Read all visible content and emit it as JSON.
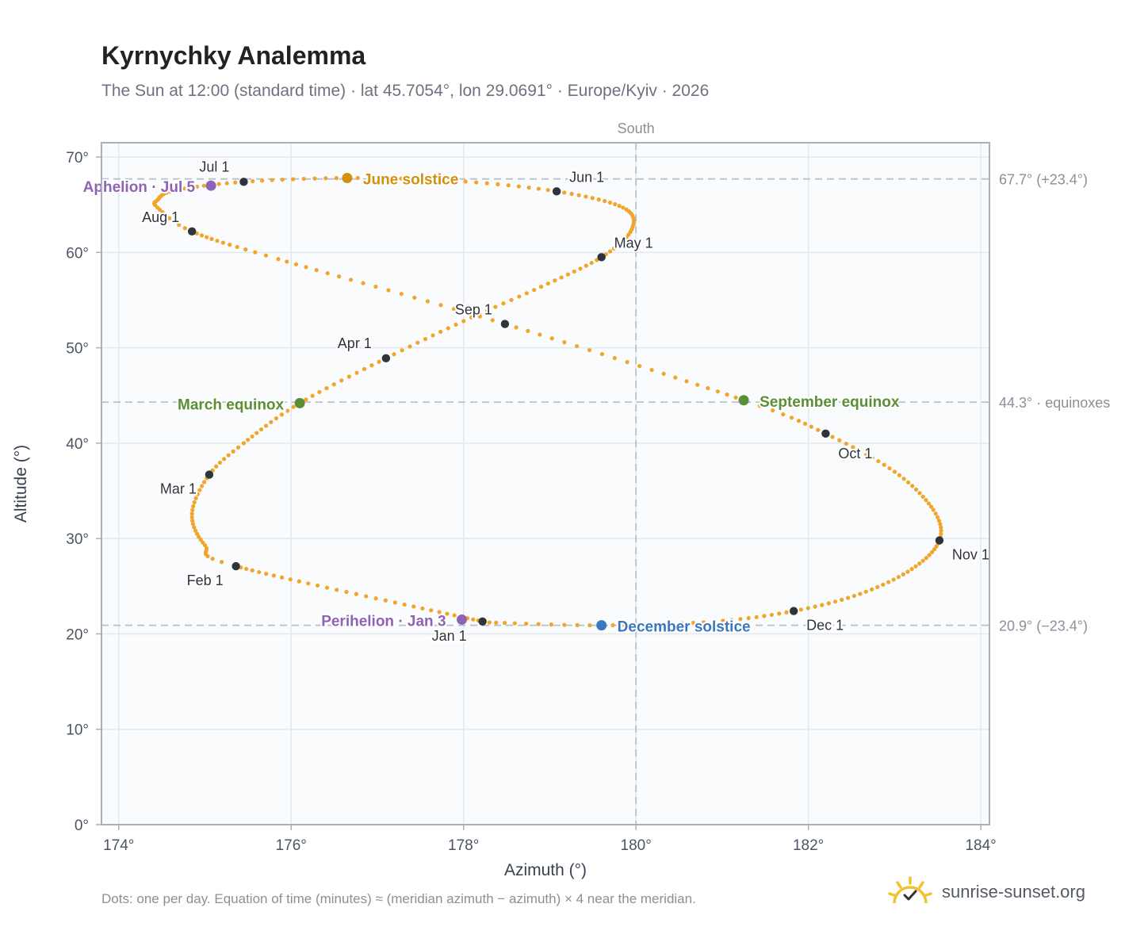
{
  "header": {
    "title": "Kyrnychky Analemma",
    "subtitle": "The Sun at 12:00 (standard time) · lat 45.7054°, lon 29.0691° · Europe/Kyiv · 2026"
  },
  "footer": {
    "note": "Dots: one per day. Equation of time (minutes) ≈ (meridian azimuth − azimuth) × 4 near the meridian.",
    "brand": "sunrise-sunset.org"
  },
  "colors": {
    "curve": "#f2a52b",
    "month_marker": "#2f343b",
    "june_solstice": "#d4900c",
    "december_solstice": "#3a77c2",
    "equinox": "#5a8f35",
    "apsis": "#8e62b4",
    "reference_line": "#b7c2cc",
    "plot_background": "#f9fbfd"
  },
  "chart_data": {
    "type": "scatter",
    "xlabel": "Azimuth (°)",
    "ylabel": "Altitude (°)",
    "xlim": [
      173.8,
      184.1
    ],
    "ylim": [
      0,
      71.5
    ],
    "x_ticks": [
      174,
      176,
      178,
      180,
      182,
      184
    ],
    "y_ticks": [
      0,
      10,
      20,
      30,
      40,
      50,
      60,
      70
    ],
    "x_tick_labels": [
      "174°",
      "176°",
      "178°",
      "180°",
      "182°",
      "184°"
    ],
    "y_tick_labels": [
      "0°",
      "10°",
      "20°",
      "30°",
      "40°",
      "50°",
      "60°",
      "70°"
    ],
    "grid": true,
    "south": {
      "azimuth": 180,
      "label": "South"
    },
    "reference_lines": [
      {
        "altitude": 67.7,
        "label": "67.7° (+23.4°)"
      },
      {
        "altitude": 44.3,
        "label": "44.3° · equinoxes"
      },
      {
        "altitude": 20.9,
        "label": "20.9° (−23.4°)"
      }
    ],
    "path": [
      {
        "day": 1,
        "az": 178.22,
        "alt": 21.3
      },
      {
        "day": 32,
        "az": 175.36,
        "alt": 27.1
      },
      {
        "day": 40,
        "az": 175.0,
        "alt": 29.3
      },
      {
        "day": 50,
        "az": 174.85,
        "alt": 32.6
      },
      {
        "day": 60,
        "az": 175.05,
        "alt": 36.7
      },
      {
        "day": 68,
        "az": 175.45,
        "alt": 40.0
      },
      {
        "day": 79,
        "az": 176.1,
        "alt": 44.2
      },
      {
        "day": 91,
        "az": 177.1,
        "alt": 48.9
      },
      {
        "day": 101,
        "az": 178.0,
        "alt": 52.8
      },
      {
        "day": 111,
        "az": 178.9,
        "alt": 56.4
      },
      {
        "day": 121,
        "az": 179.6,
        "alt": 59.5
      },
      {
        "day": 131,
        "az": 179.95,
        "alt": 62.4
      },
      {
        "day": 141,
        "az": 179.85,
        "alt": 64.7
      },
      {
        "day": 152,
        "az": 179.08,
        "alt": 66.4
      },
      {
        "day": 162,
        "az": 177.9,
        "alt": 67.5
      },
      {
        "day": 172,
        "az": 176.65,
        "alt": 67.8
      },
      {
        "day": 182,
        "az": 175.45,
        "alt": 67.4
      },
      {
        "day": 192,
        "az": 174.65,
        "alt": 66.5
      },
      {
        "day": 200,
        "az": 174.45,
        "alt": 65.5
      },
      {
        "day": 205,
        "az": 174.45,
        "alt": 64.7
      },
      {
        "day": 213,
        "az": 174.85,
        "alt": 62.2
      },
      {
        "day": 225,
        "az": 175.85,
        "alt": 59.3
      },
      {
        "day": 244,
        "az": 178.48,
        "alt": 52.5
      },
      {
        "day": 265,
        "az": 181.25,
        "alt": 44.5
      },
      {
        "day": 274,
        "az": 182.2,
        "alt": 41.0
      },
      {
        "day": 285,
        "az": 183.0,
        "alt": 37.0
      },
      {
        "day": 296,
        "az": 183.45,
        "alt": 33.0
      },
      {
        "day": 305,
        "az": 183.52,
        "alt": 29.8
      },
      {
        "day": 315,
        "az": 183.2,
        "alt": 26.8
      },
      {
        "day": 325,
        "az": 182.6,
        "alt": 24.2
      },
      {
        "day": 335,
        "az": 181.83,
        "alt": 22.4
      },
      {
        "day": 345,
        "az": 180.9,
        "alt": 21.3
      },
      {
        "day": 355,
        "az": 179.6,
        "alt": 20.9
      },
      {
        "day": 365,
        "az": 178.3,
        "alt": 21.2
      }
    ],
    "month_markers": [
      {
        "label": "Jan 1",
        "az": 178.22,
        "alt": 21.3,
        "anchor": "middle",
        "dx": -42,
        "dy": 24
      },
      {
        "label": "Feb 1",
        "az": 175.36,
        "alt": 27.1,
        "anchor": "end",
        "dx": -16,
        "dy": 24
      },
      {
        "label": "Mar 1",
        "az": 175.05,
        "alt": 36.7,
        "anchor": "end",
        "dx": -16,
        "dy": 24
      },
      {
        "label": "Apr 1",
        "az": 177.1,
        "alt": 48.9,
        "anchor": "end",
        "dx": -18,
        "dy": -13
      },
      {
        "label": "May 1",
        "az": 179.6,
        "alt": 59.5,
        "anchor": "start",
        "dx": 16,
        "dy": -12
      },
      {
        "label": "Jun 1",
        "az": 179.08,
        "alt": 66.4,
        "anchor": "start",
        "dx": 16,
        "dy": -12
      },
      {
        "label": "Jul 1",
        "az": 175.45,
        "alt": 67.4,
        "anchor": "end",
        "dx": -18,
        "dy": -13
      },
      {
        "label": "Aug 1",
        "az": 174.85,
        "alt": 62.2,
        "anchor": "end",
        "dx": -16,
        "dy": -12
      },
      {
        "label": "Sep 1",
        "az": 178.48,
        "alt": 52.5,
        "anchor": "end",
        "dx": -16,
        "dy": -12
      },
      {
        "label": "Oct 1",
        "az": 182.2,
        "alt": 41.0,
        "anchor": "start",
        "dx": 16,
        "dy": 31
      },
      {
        "label": "Nov 1",
        "az": 183.52,
        "alt": 29.8,
        "anchor": "start",
        "dx": 16,
        "dy": 24
      },
      {
        "label": "Dec 1",
        "az": 181.83,
        "alt": 22.4,
        "anchor": "start",
        "dx": 16,
        "dy": 24
      }
    ],
    "events": [
      {
        "label": "June solstice",
        "az": 176.65,
        "alt": 67.8,
        "color_key": "june_solstice",
        "anchor": "start",
        "dx": 20,
        "dy": 8
      },
      {
        "label": "December solstice",
        "az": 179.6,
        "alt": 20.9,
        "color_key": "december_solstice",
        "anchor": "start",
        "dx": 20,
        "dy": 8
      },
      {
        "label": "March equinox",
        "az": 176.1,
        "alt": 44.2,
        "color_key": "equinox",
        "anchor": "end",
        "dx": -20,
        "dy": 8
      },
      {
        "label": "September equinox",
        "az": 181.25,
        "alt": 44.5,
        "color_key": "equinox",
        "anchor": "start",
        "dx": 20,
        "dy": 8
      },
      {
        "label": "Aphelion · Jul 5",
        "az": 175.07,
        "alt": 67.0,
        "color_key": "apsis",
        "anchor": "end",
        "dx": -20,
        "dy": 8
      },
      {
        "label": "Perihelion · Jan 3",
        "az": 177.98,
        "alt": 21.5,
        "color_key": "apsis",
        "anchor": "end",
        "dx": -20,
        "dy": 8
      }
    ]
  }
}
